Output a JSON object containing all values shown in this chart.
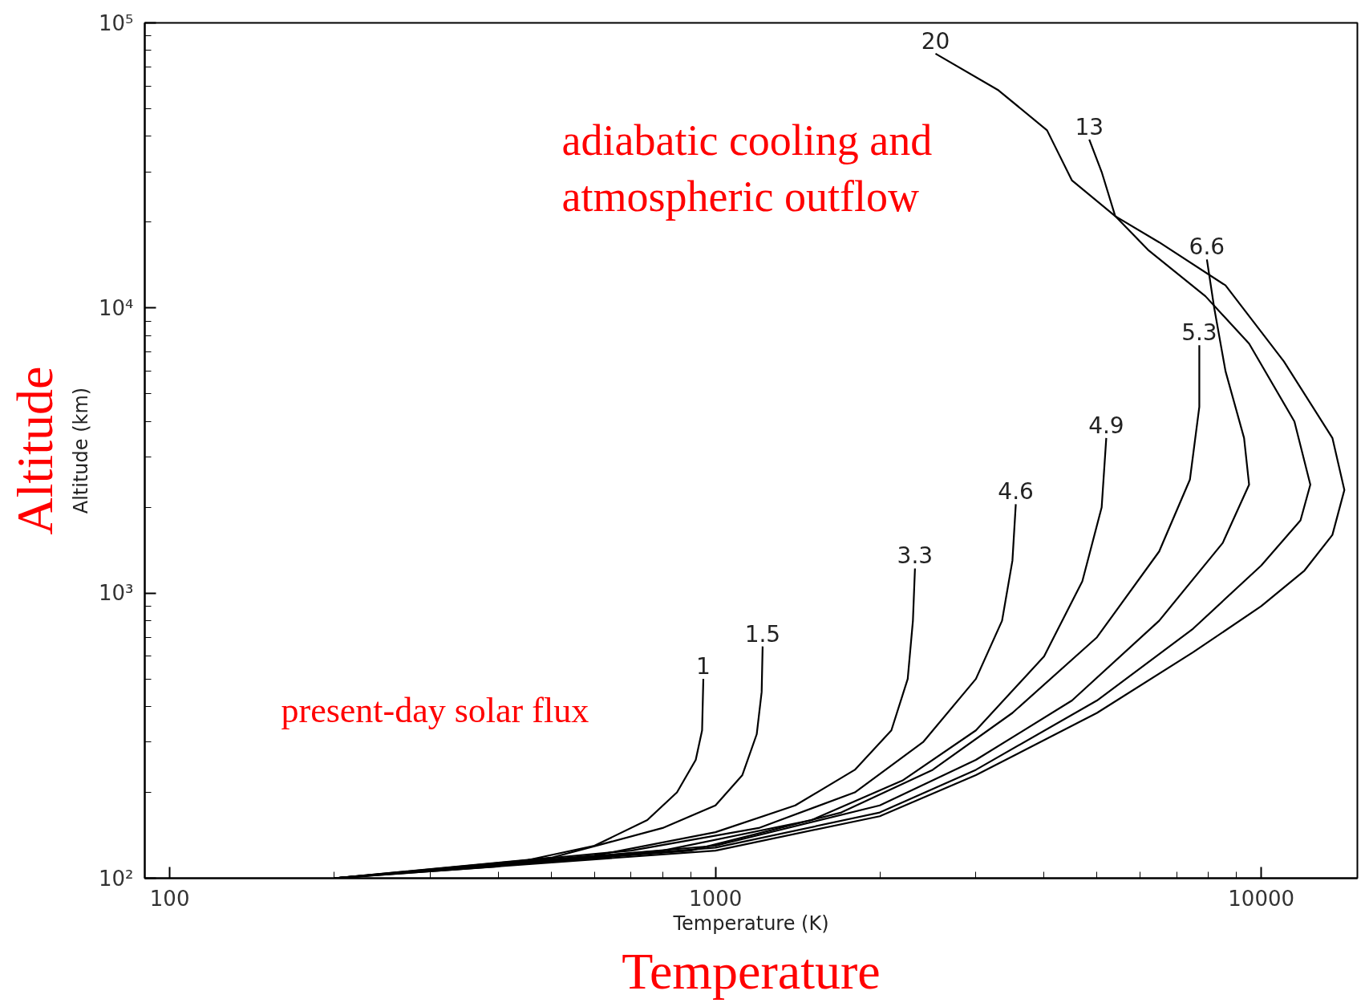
{
  "chart_data": {
    "type": "line",
    "xlabel": "Temperature (K)",
    "ylabel": "Altitude (km)",
    "log": "xy",
    "xlim": [
      90,
      15000
    ],
    "ylim": [
      100,
      100000
    ],
    "xticks": [
      100,
      1000,
      10000
    ],
    "yticks": [
      {
        "value": 100,
        "label": "10²"
      },
      {
        "value": 1000,
        "label": "10³"
      },
      {
        "value": 10000,
        "label": "10⁴"
      },
      {
        "value": 100000,
        "label": "10⁵"
      }
    ],
    "grid": false,
    "marker": "none",
    "line_style": "solid",
    "annotations": [
      "Altitude",
      "Temperature",
      "adiabatic cooling and atmospheric outflow",
      "present-day solar flux"
    ],
    "series": [
      {
        "name": "1",
        "color": "#000000",
        "x": [
          200,
          400,
          600,
          750,
          850,
          920,
          945,
          950
        ],
        "values": [
          100,
          110,
          130,
          160,
          200,
          260,
          330,
          500
        ]
      },
      {
        "name": "1.5",
        "color": "#000000",
        "x": [
          200,
          500,
          800,
          1000,
          1120,
          1190,
          1215,
          1220
        ],
        "values": [
          100,
          118,
          150,
          180,
          230,
          320,
          450,
          650
        ]
      },
      {
        "name": "3.3",
        "color": "#000000",
        "x": [
          200,
          600,
          1000,
          1400,
          1800,
          2100,
          2250,
          2300,
          2320
        ],
        "values": [
          100,
          120,
          145,
          180,
          240,
          330,
          500,
          800,
          1220
        ]
      },
      {
        "name": "4.6",
        "color": "#000000",
        "x": [
          200,
          700,
          1200,
          1800,
          2400,
          3000,
          3350,
          3500,
          3550
        ],
        "values": [
          100,
          125,
          150,
          200,
          300,
          500,
          800,
          1300,
          2050
        ]
      },
      {
        "name": "4.9",
        "color": "#000000",
        "x": [
          200,
          800,
          1500,
          2200,
          3000,
          4000,
          4700,
          5100,
          5200
        ],
        "values": [
          100,
          125,
          160,
          220,
          330,
          600,
          1100,
          2000,
          3500
        ]
      },
      {
        "name": "5.3",
        "color": "#000000",
        "x": [
          200,
          900,
          1700,
          2500,
          3500,
          5000,
          6500,
          7400,
          7700,
          7700
        ],
        "values": [
          100,
          125,
          170,
          240,
          380,
          700,
          1400,
          2500,
          4500,
          7400
        ]
      },
      {
        "name": "6.6",
        "color": "#000000",
        "x": [
          200,
          1000,
          2000,
          3000,
          4500,
          6500,
          8500,
          9500,
          9300,
          8600,
          8200,
          7950
        ],
        "values": [
          100,
          130,
          180,
          260,
          420,
          800,
          1500,
          2400,
          3500,
          6000,
          10000,
          14800
        ]
      },
      {
        "name": "13",
        "color": "#000000",
        "x": [
          200,
          1000,
          2000,
          3000,
          5000,
          7500,
          10000,
          11800,
          12300,
          11500,
          9500,
          7900,
          6200,
          5400,
          5100,
          4840
        ],
        "values": [
          100,
          128,
          170,
          240,
          420,
          750,
          1250,
          1800,
          2400,
          4000,
          7500,
          11000,
          16000,
          21000,
          30000,
          39000
        ]
      },
      {
        "name": "20",
        "color": "#000000",
        "x": [
          200,
          1000,
          2000,
          3000,
          5000,
          7500,
          10000,
          12000,
          13500,
          14200,
          13500,
          11000,
          8600,
          6500,
          5400,
          4500,
          4050,
          3300,
          2530
        ],
        "values": [
          100,
          125,
          165,
          230,
          380,
          620,
          900,
          1200,
          1600,
          2300,
          3500,
          6500,
          12000,
          17000,
          21000,
          28000,
          42000,
          58000,
          78000
        ]
      }
    ]
  }
}
